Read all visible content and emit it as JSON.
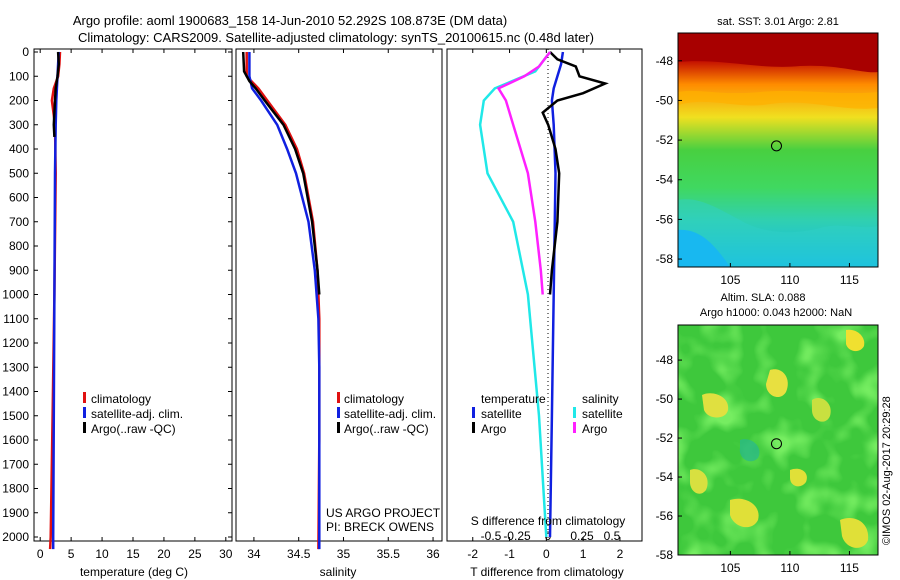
{
  "title": {
    "line1": "Argo profile: aoml 1900683_158 14-Jun-2010 52.292S 108.873E (DM data)",
    "line2": "Climatology: CARS2009. Satellite-adjusted climatology: synTS_20100615.nc (0.48d later)"
  },
  "colors": {
    "climatology": "#e01010",
    "satellite": "#1020e0",
    "argo": "#000000",
    "argo_s": "#ff20ff",
    "sat_s": "#20e8e8"
  },
  "depth_ticks": [
    0,
    100,
    200,
    300,
    400,
    500,
    600,
    700,
    800,
    900,
    1000,
    1100,
    1200,
    1300,
    1400,
    1500,
    1600,
    1700,
    1800,
    1900,
    2000
  ],
  "chart_data": [
    {
      "type": "line",
      "panel": "temperature",
      "xlabel": "temperature (deg C)",
      "xlim": [
        -1,
        31
      ],
      "ylim": [
        2060,
        0
      ],
      "x_ticks": [
        0,
        5,
        10,
        15,
        20,
        25,
        30
      ],
      "legend": [
        "climatology",
        "satellite-adj. clim.",
        "Argo(..raw -QC)"
      ],
      "series": [
        {
          "name": "climatology",
          "depth": [
            0,
            50,
            100,
            150,
            200,
            300,
            500,
            1000,
            1500,
            2000,
            2050
          ],
          "values": [
            3.2,
            3.1,
            2.9,
            2.2,
            1.9,
            2.4,
            2.5,
            2.3,
            2.0,
            1.7,
            1.6
          ]
        },
        {
          "name": "satellite-adj. clim.",
          "depth": [
            0,
            50,
            100,
            150,
            200,
            300,
            500,
            1000,
            1500,
            2000,
            2050
          ],
          "values": [
            3.0,
            2.9,
            2.8,
            2.7,
            2.6,
            2.5,
            2.4,
            2.3,
            2.2,
            2.1,
            2.1
          ]
        },
        {
          "name": "Argo(..raw -QC)",
          "depth": [
            0,
            50,
            100,
            150,
            200,
            250,
            300,
            350
          ],
          "values": [
            2.9,
            3.0,
            2.8,
            2.5,
            2.4,
            2.3,
            2.2,
            2.3
          ]
        }
      ]
    },
    {
      "type": "line",
      "panel": "salinity",
      "xlabel": "salinity",
      "xlim": [
        33.8,
        36.1
      ],
      "ylim": [
        2060,
        0
      ],
      "x_ticks": [
        34,
        34.5,
        35,
        35.5,
        36
      ],
      "legend": [
        "climatology",
        "satellite-adj. clim.",
        "Argo(..raw -QC)"
      ],
      "annotation": [
        "US ARGO PROJECT",
        "PI: BRECK OWENS"
      ],
      "series": [
        {
          "name": "climatology",
          "depth": [
            0,
            100,
            150,
            200,
            300,
            400,
            500,
            700,
            900,
            1100,
            1300,
            1600,
            2050
          ],
          "values": [
            33.92,
            33.92,
            34.05,
            34.15,
            34.35,
            34.48,
            34.56,
            34.66,
            34.71,
            34.73,
            34.73,
            34.73,
            34.72
          ]
        },
        {
          "name": "satellite-adj. clim.",
          "depth": [
            0,
            100,
            150,
            200,
            300,
            400,
            500,
            700,
            900,
            1100,
            1300,
            1600,
            2050
          ],
          "values": [
            33.95,
            33.95,
            33.98,
            34.08,
            34.26,
            34.37,
            34.47,
            34.61,
            34.68,
            34.72,
            34.73,
            34.73,
            34.73
          ]
        },
        {
          "name": "Argo(..raw -QC)",
          "depth": [
            0,
            80,
            120,
            150,
            200,
            300,
            400,
            500,
            700,
            900,
            1000
          ],
          "values": [
            33.88,
            33.89,
            33.95,
            34.02,
            34.12,
            34.33,
            34.46,
            34.55,
            34.65,
            34.71,
            34.73
          ]
        }
      ]
    },
    {
      "type": "line",
      "panel": "difference",
      "xlabel": "T difference from climatology",
      "xlabel2": "S difference from climatology",
      "xlim": [
        -2.7,
        2.6
      ],
      "ylim": [
        2060,
        0
      ],
      "x_ticks": [
        -2,
        -1,
        0,
        1,
        2
      ],
      "x2_ticks": [
        "-0.5",
        "-0.25",
        "0",
        "0.25",
        "0.5"
      ],
      "legend_headers": [
        "temperature",
        "salinity"
      ],
      "legend": [
        "satellite",
        "Argo",
        "satellite",
        "Argo"
      ],
      "series": [
        {
          "name": "satellite",
          "depth": [
            0,
            50,
            100,
            150,
            200,
            300,
            500,
            1000,
            1500,
            2000
          ],
          "values": [
            0.45,
            0.4,
            0.3,
            0.2,
            0.15,
            0.2,
            0.25,
            0.2,
            0.15,
            0.1
          ]
        },
        {
          "name": "Argo",
          "depth": [
            0,
            30,
            60,
            100,
            130,
            170,
            200,
            250,
            300,
            400,
            500,
            700,
            900,
            1000
          ],
          "values": [
            0.1,
            0.3,
            0.8,
            0.9,
            1.6,
            1.0,
            0.3,
            -0.1,
            0.05,
            0.25,
            0.35,
            0.3,
            0.15,
            0.1
          ]
        },
        {
          "name": "satellite",
          "depth": [
            0,
            80,
            150,
            200,
            300,
            500,
            700,
            1000,
            1500,
            2000
          ],
          "values": [
            0.1,
            -0.3,
            -1.4,
            -1.7,
            -1.8,
            -1.6,
            -0.9,
            -0.5,
            -0.2,
            0.0
          ]
        },
        {
          "name": "Argo",
          "depth": [
            0,
            60,
            100,
            150,
            200,
            300,
            500,
            700,
            900,
            1000
          ],
          "values": [
            0.1,
            -0.2,
            -0.6,
            -1.3,
            -1.1,
            -0.9,
            -0.5,
            -0.3,
            -0.15,
            -0.1
          ]
        }
      ]
    },
    {
      "type": "heatmap",
      "panel": "sst-map",
      "title": "sat. SST: 3.01 Argo: 2.81",
      "x_ticks": [
        105,
        110,
        115
      ],
      "y_ticks": [
        -48,
        -50,
        -52,
        -54,
        -56,
        -58
      ],
      "marker": {
        "lon": 108.873,
        "lat": -52.292
      }
    },
    {
      "type": "heatmap",
      "panel": "sla-map",
      "title1": "Altim. SLA: 0.088",
      "title2": "Argo h1000: 0.043 h2000: NaN",
      "x_ticks": [
        105,
        110,
        115
      ],
      "y_ticks": [
        -48,
        -50,
        -52,
        -54,
        -56,
        -58
      ],
      "marker": {
        "lon": 108.873,
        "lat": -52.292
      }
    }
  ],
  "credit": "©IMOS 02-Aug-2017 20:29:28"
}
